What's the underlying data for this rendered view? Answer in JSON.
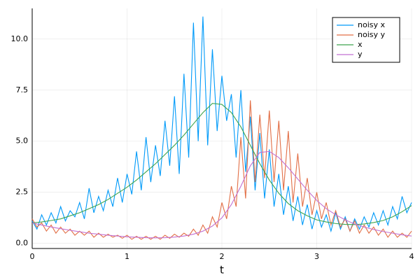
{
  "chart_data": {
    "type": "line",
    "xlabel": "t",
    "xlim": [
      0,
      4
    ],
    "xticks": [
      0,
      1,
      2,
      3,
      4
    ],
    "ylim": [
      -0.25,
      11.5
    ],
    "yticks": [
      {
        "value": 0,
        "label": "0.0"
      },
      {
        "value": 2.5,
        "label": "2.5"
      },
      {
        "value": 5,
        "label": "5.0"
      },
      {
        "value": 7.5,
        "label": "7.5"
      },
      {
        "value": 10,
        "label": "10.0"
      }
    ],
    "grid": true,
    "legend": "top-right",
    "series": [
      {
        "name": "noisy x",
        "color": "#009af9",
        "x": [
          0,
          0.05,
          0.1,
          0.15,
          0.2,
          0.25,
          0.3,
          0.35,
          0.4,
          0.45,
          0.5,
          0.55,
          0.6,
          0.65,
          0.7,
          0.75,
          0.8,
          0.85,
          0.9,
          0.95,
          1,
          1.05,
          1.1,
          1.15,
          1.2,
          1.25,
          1.3,
          1.35,
          1.4,
          1.45,
          1.5,
          1.55,
          1.6,
          1.65,
          1.7,
          1.75,
          1.8,
          1.85,
          1.9,
          1.95,
          2,
          2.05,
          2.1,
          2.15,
          2.2,
          2.25,
          2.3,
          2.35,
          2.4,
          2.45,
          2.5,
          2.55,
          2.6,
          2.65,
          2.7,
          2.75,
          2.8,
          2.85,
          2.9,
          2.95,
          3,
          3.05,
          3.1,
          3.15,
          3.2,
          3.25,
          3.3,
          3.35,
          3.4,
          3.45,
          3.5,
          3.55,
          3.6,
          3.65,
          3.7,
          3.75,
          3.8,
          3.85,
          3.9,
          3.95,
          4
        ],
        "values": [
          1.1,
          0.7,
          1.4,
          0.9,
          1.5,
          1.0,
          1.8,
          1.1,
          1.6,
          1.3,
          2.0,
          1.2,
          2.7,
          1.5,
          2.3,
          1.6,
          2.6,
          1.8,
          3.2,
          2.0,
          3.4,
          2.4,
          4.5,
          2.6,
          5.2,
          3.0,
          4.8,
          3.3,
          6.0,
          3.8,
          7.2,
          3.4,
          8.3,
          4.2,
          10.8,
          5.0,
          11.1,
          4.8,
          9.5,
          5.5,
          8.2,
          6.0,
          7.3,
          4.2,
          7.5,
          3.5,
          6.2,
          2.6,
          5.4,
          2.2,
          4.6,
          1.8,
          3.4,
          1.4,
          2.8,
          1.1,
          2.3,
          0.9,
          1.9,
          0.7,
          1.6,
          0.8,
          1.4,
          0.6,
          1.5,
          0.7,
          1.3,
          0.6,
          1.2,
          0.7,
          1.3,
          0.8,
          1.5,
          0.9,
          1.6,
          0.9,
          1.8,
          1.2,
          2.3,
          1.5,
          2.0
        ]
      },
      {
        "name": "noisy y",
        "color": "#e26f46",
        "x": [
          0,
          0.05,
          0.1,
          0.15,
          0.2,
          0.25,
          0.3,
          0.35,
          0.4,
          0.45,
          0.5,
          0.55,
          0.6,
          0.65,
          0.7,
          0.75,
          0.8,
          0.85,
          0.9,
          0.95,
          1,
          1.05,
          1.1,
          1.15,
          1.2,
          1.25,
          1.3,
          1.35,
          1.4,
          1.45,
          1.5,
          1.55,
          1.6,
          1.65,
          1.7,
          1.75,
          1.8,
          1.85,
          1.9,
          1.95,
          2,
          2.05,
          2.1,
          2.15,
          2.2,
          2.25,
          2.3,
          2.35,
          2.4,
          2.45,
          2.5,
          2.55,
          2.6,
          2.65,
          2.7,
          2.75,
          2.8,
          2.85,
          2.9,
          2.95,
          3,
          3.05,
          3.1,
          3.15,
          3.2,
          3.25,
          3.3,
          3.35,
          3.4,
          3.45,
          3.5,
          3.55,
          3.6,
          3.65,
          3.7,
          3.75,
          3.8,
          3.85,
          3.9,
          3.95,
          4
        ],
        "values": [
          1.2,
          0.8,
          1.0,
          0.6,
          0.9,
          0.5,
          0.8,
          0.5,
          0.7,
          0.4,
          0.6,
          0.4,
          0.6,
          0.3,
          0.5,
          0.3,
          0.45,
          0.3,
          0.4,
          0.25,
          0.4,
          0.2,
          0.35,
          0.2,
          0.35,
          0.2,
          0.35,
          0.2,
          0.4,
          0.25,
          0.45,
          0.3,
          0.5,
          0.35,
          0.7,
          0.4,
          0.9,
          0.5,
          1.3,
          0.8,
          2.0,
          1.2,
          2.8,
          1.8,
          5.2,
          2.2,
          7.0,
          3.0,
          6.3,
          3.2,
          6.5,
          3.0,
          6.0,
          2.6,
          5.5,
          2.0,
          4.4,
          1.8,
          3.2,
          1.4,
          2.5,
          1.2,
          2.0,
          0.9,
          1.6,
          0.8,
          1.2,
          0.6,
          1.1,
          0.5,
          0.9,
          0.5,
          0.8,
          0.4,
          0.7,
          0.3,
          0.6,
          0.3,
          0.5,
          0.3,
          0.6
        ]
      },
      {
        "name": "x",
        "color": "#3da44d",
        "x": [
          0,
          0.1,
          0.2,
          0.3,
          0.4,
          0.5,
          0.6,
          0.7,
          0.8,
          0.9,
          1,
          1.1,
          1.2,
          1.3,
          1.4,
          1.5,
          1.6,
          1.7,
          1.8,
          1.9,
          2,
          2.1,
          2.2,
          2.3,
          2.4,
          2.5,
          2.6,
          2.7,
          2.8,
          2.9,
          3,
          3.1,
          3.2,
          3.3,
          3.4,
          3.5,
          3.6,
          3.7,
          3.8,
          3.9,
          4
        ],
        "values": [
          1.0,
          1.05,
          1.12,
          1.2,
          1.35,
          1.5,
          1.7,
          1.9,
          2.15,
          2.45,
          2.75,
          3.1,
          3.5,
          3.9,
          4.35,
          4.8,
          5.3,
          5.85,
          6.4,
          6.85,
          6.8,
          6.4,
          5.7,
          4.8,
          3.9,
          3.1,
          2.45,
          1.95,
          1.6,
          1.35,
          1.15,
          1.05,
          0.97,
          0.93,
          0.92,
          0.95,
          1.02,
          1.12,
          1.3,
          1.55,
          1.85
        ]
      },
      {
        "name": "y",
        "color": "#c271d2",
        "x": [
          0,
          0.1,
          0.2,
          0.3,
          0.4,
          0.5,
          0.6,
          0.7,
          0.8,
          0.9,
          1,
          1.1,
          1.2,
          1.3,
          1.4,
          1.5,
          1.6,
          1.7,
          1.8,
          1.9,
          2,
          2.1,
          2.2,
          2.3,
          2.4,
          2.5,
          2.6,
          2.7,
          2.8,
          2.9,
          3,
          3.1,
          3.2,
          3.3,
          3.4,
          3.5,
          3.6,
          3.7,
          3.8,
          3.9,
          4
        ],
        "values": [
          1.0,
          0.9,
          0.8,
          0.72,
          0.64,
          0.57,
          0.5,
          0.45,
          0.4,
          0.36,
          0.32,
          0.3,
          0.28,
          0.27,
          0.28,
          0.31,
          0.36,
          0.45,
          0.6,
          0.85,
          1.25,
          1.9,
          2.8,
          3.8,
          4.45,
          4.5,
          4.2,
          3.7,
          3.15,
          2.6,
          2.1,
          1.7,
          1.4,
          1.15,
          0.95,
          0.8,
          0.68,
          0.58,
          0.5,
          0.42,
          0.36
        ]
      }
    ]
  }
}
